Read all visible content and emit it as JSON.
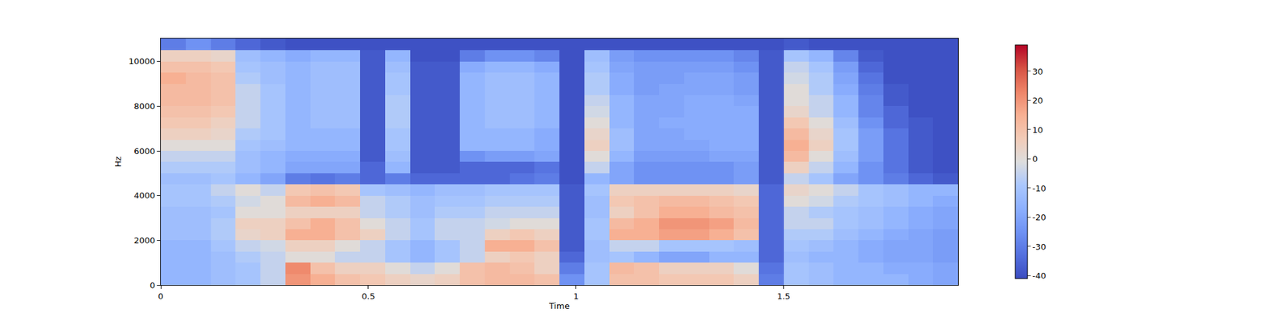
{
  "chart_data": {
    "type": "heatmap",
    "x_label": "Time",
    "y_label": "Hz",
    "x": [
      0,
      0.06,
      0.12,
      0.18,
      0.24,
      0.3,
      0.36,
      0.42,
      0.48,
      0.54,
      0.6,
      0.66,
      0.72,
      0.78,
      0.84,
      0.9,
      0.96,
      1.02,
      1.08,
      1.14,
      1.2,
      1.26,
      1.32,
      1.38,
      1.44,
      1.5,
      1.56,
      1.62,
      1.68,
      1.74,
      1.8,
      1.86,
      1.92
    ],
    "y": [
      0,
      500,
      1000,
      1500,
      2000,
      2500,
      3000,
      3500,
      4000,
      4500,
      5000,
      5500,
      6000,
      6500,
      7000,
      7500,
      8000,
      8500,
      9000,
      9500,
      10000,
      10500,
      11025
    ],
    "z": [
      [
        -15,
        -15,
        -12,
        -10,
        -5,
        20,
        15,
        10,
        8,
        5,
        3,
        5,
        10,
        12,
        12,
        10,
        -25,
        -10,
        10,
        10,
        8,
        8,
        8,
        5,
        -30,
        -10,
        -12,
        -15,
        -15,
        -15,
        -18,
        -20
      ],
      [
        -15,
        -15,
        -12,
        -10,
        -5,
        22,
        10,
        5,
        5,
        0,
        -5,
        0,
        10,
        12,
        10,
        5,
        -30,
        -10,
        12,
        10,
        5,
        5,
        5,
        0,
        -32,
        -10,
        -12,
        -15,
        -15,
        -18,
        -18,
        -20
      ],
      [
        -15,
        -15,
        -12,
        -8,
        -5,
        0,
        0,
        -5,
        -5,
        -10,
        -15,
        -10,
        -5,
        5,
        8,
        5,
        -35,
        -12,
        -10,
        -15,
        -20,
        -20,
        -15,
        -15,
        -35,
        -12,
        -15,
        -15,
        -18,
        -20,
        -20,
        -22
      ],
      [
        -15,
        -15,
        -10,
        -5,
        -3,
        5,
        5,
        0,
        -5,
        -10,
        -15,
        -10,
        -5,
        15,
        15,
        10,
        -38,
        -12,
        -5,
        -5,
        -10,
        -10,
        -10,
        -12,
        -35,
        -10,
        -12,
        -15,
        -18,
        -20,
        -20,
        -22
      ],
      [
        -12,
        -12,
        -8,
        3,
        5,
        15,
        15,
        10,
        5,
        -5,
        -10,
        -5,
        -5,
        5,
        8,
        5,
        -38,
        -10,
        15,
        15,
        18,
        18,
        15,
        10,
        -35,
        -8,
        -8,
        -12,
        -15,
        -18,
        -20,
        -22
      ],
      [
        -12,
        -12,
        -8,
        5,
        5,
        10,
        15,
        10,
        0,
        -5,
        -10,
        -5,
        -5,
        -3,
        0,
        0,
        -38,
        -10,
        12,
        15,
        20,
        20,
        18,
        12,
        -35,
        -5,
        -5,
        -10,
        -12,
        -15,
        -18,
        -20
      ],
      [
        -12,
        -12,
        -10,
        0,
        0,
        5,
        5,
        5,
        -5,
        -8,
        -12,
        -8,
        -8,
        -5,
        -5,
        -5,
        -38,
        -12,
        5,
        10,
        15,
        15,
        12,
        10,
        -35,
        -5,
        -8,
        -10,
        -12,
        -15,
        -18,
        -20
      ],
      [
        -10,
        -10,
        -8,
        -3,
        0,
        12,
        15,
        12,
        -5,
        -8,
        -12,
        -10,
        -10,
        -8,
        -8,
        -8,
        -38,
        -12,
        8,
        10,
        12,
        12,
        10,
        8,
        -35,
        0,
        -3,
        -8,
        -10,
        -12,
        -15,
        -18
      ],
      [
        -10,
        -10,
        -5,
        0,
        -5,
        8,
        10,
        8,
        -10,
        -12,
        -15,
        -12,
        -12,
        -10,
        -10,
        -10,
        -38,
        -10,
        5,
        5,
        5,
        5,
        5,
        3,
        -35,
        3,
        0,
        -5,
        -10,
        -12,
        -15,
        -15
      ],
      [
        -12,
        -12,
        -10,
        -15,
        -20,
        -30,
        -32,
        -30,
        -35,
        -30,
        -35,
        -35,
        -35,
        -35,
        -32,
        -30,
        -40,
        -15,
        -20,
        -25,
        -25,
        -25,
        -25,
        -22,
        -38,
        -5,
        -10,
        -20,
        -25,
        -30,
        -35,
        -38
      ],
      [
        -8,
        -8,
        -8,
        -12,
        -15,
        -20,
        -20,
        -20,
        -35,
        -15,
        -38,
        -38,
        -35,
        -35,
        -35,
        -32,
        -40,
        -5,
        -20,
        -25,
        -25,
        -25,
        -25,
        -22,
        -38,
        5,
        -5,
        -15,
        -25,
        -32,
        -38,
        -40
      ],
      [
        -5,
        -5,
        -5,
        -12,
        -15,
        -18,
        -18,
        -18,
        -38,
        -12,
        -38,
        -38,
        -25,
        -22,
        -22,
        -20,
        -40,
        0,
        -15,
        -22,
        -22,
        -22,
        -20,
        -20,
        -38,
        12,
        0,
        -12,
        -22,
        -32,
        -38,
        -40
      ],
      [
        0,
        0,
        0,
        -10,
        -12,
        -15,
        -15,
        -15,
        -38,
        -10,
        -38,
        -38,
        -15,
        -15,
        -15,
        -18,
        -40,
        5,
        -12,
        -20,
        -20,
        -20,
        -18,
        -18,
        -38,
        15,
        5,
        -10,
        -22,
        -32,
        -38,
        -40
      ],
      [
        5,
        5,
        3,
        -8,
        -10,
        -15,
        -15,
        -15,
        -38,
        -10,
        -38,
        -38,
        -15,
        -15,
        -15,
        -18,
        -40,
        3,
        -12,
        -20,
        -20,
        -18,
        -18,
        -18,
        -38,
        12,
        3,
        -10,
        -22,
        -32,
        -38,
        -40
      ],
      [
        8,
        8,
        5,
        -5,
        -10,
        -15,
        -12,
        -12,
        -38,
        -8,
        -38,
        -38,
        -15,
        -12,
        -12,
        -15,
        -40,
        0,
        -15,
        -20,
        -18,
        -18,
        -18,
        -18,
        -38,
        8,
        0,
        -12,
        -25,
        -35,
        -38,
        -40
      ],
      [
        10,
        10,
        8,
        -5,
        -10,
        -15,
        -12,
        -12,
        -38,
        -8,
        -38,
        -38,
        -15,
        -12,
        -12,
        -15,
        -40,
        -3,
        -15,
        -20,
        -20,
        -18,
        -18,
        -18,
        -38,
        3,
        -5,
        -15,
        -28,
        -35,
        -40,
        -40
      ],
      [
        12,
        12,
        10,
        -5,
        -10,
        -15,
        -12,
        -12,
        -38,
        -8,
        -38,
        -38,
        -15,
        -12,
        -12,
        -15,
        -40,
        -5,
        -15,
        -20,
        -20,
        -18,
        -18,
        -20,
        -38,
        0,
        -5,
        -15,
        -28,
        -38,
        -40,
        -40
      ],
      [
        12,
        12,
        10,
        -5,
        -10,
        -15,
        -12,
        -12,
        -38,
        -10,
        -38,
        -38,
        -15,
        -12,
        -12,
        -15,
        -40,
        -8,
        -18,
        -22,
        -20,
        -20,
        -20,
        -22,
        -38,
        0,
        -8,
        -18,
        -30,
        -38,
        -40,
        -40
      ],
      [
        15,
        12,
        10,
        -8,
        -12,
        -15,
        -12,
        -12,
        -38,
        -10,
        -38,
        -38,
        -15,
        -12,
        -12,
        -15,
        -40,
        -8,
        -18,
        -22,
        -22,
        -20,
        -20,
        -22,
        -38,
        -3,
        -8,
        -20,
        -32,
        -40,
        -40,
        -40
      ],
      [
        10,
        10,
        8,
        -10,
        -12,
        -15,
        -12,
        -12,
        -38,
        -12,
        -38,
        -38,
        -18,
        -15,
        -15,
        -18,
        -40,
        -10,
        -20,
        -22,
        -22,
        -22,
        -22,
        -25,
        -38,
        -5,
        -10,
        -22,
        -35,
        -40,
        -40,
        -40
      ],
      [
        5,
        5,
        3,
        -12,
        -15,
        -18,
        -15,
        -15,
        -38,
        -15,
        -40,
        -40,
        -30,
        -25,
        -25,
        -28,
        -40,
        -12,
        -22,
        -25,
        -25,
        -25,
        -25,
        -28,
        -38,
        -10,
        -15,
        -28,
        -38,
        -40,
        -40,
        -40
      ],
      [
        -30,
        -25,
        -30,
        -35,
        -38,
        -40,
        -40,
        -40,
        -40,
        -40,
        -40,
        -40,
        -40,
        -40,
        -40,
        -40,
        -40,
        -40,
        -40,
        -40,
        -40,
        -40,
        -40,
        -40,
        -40,
        -38,
        -40,
        -40,
        -40,
        -40,
        -40,
        -40
      ]
    ],
    "xlim": [
      0,
      1.92
    ],
    "ylim": [
      0,
      11025
    ],
    "xticks": [
      0,
      0.5,
      1,
      1.5
    ],
    "yticks": [
      0,
      2000,
      4000,
      6000,
      8000,
      10000
    ],
    "zlim": [
      -41,
      39
    ],
    "zticks": [
      -40,
      -30,
      -20,
      -10,
      0,
      10,
      20,
      30
    ]
  }
}
